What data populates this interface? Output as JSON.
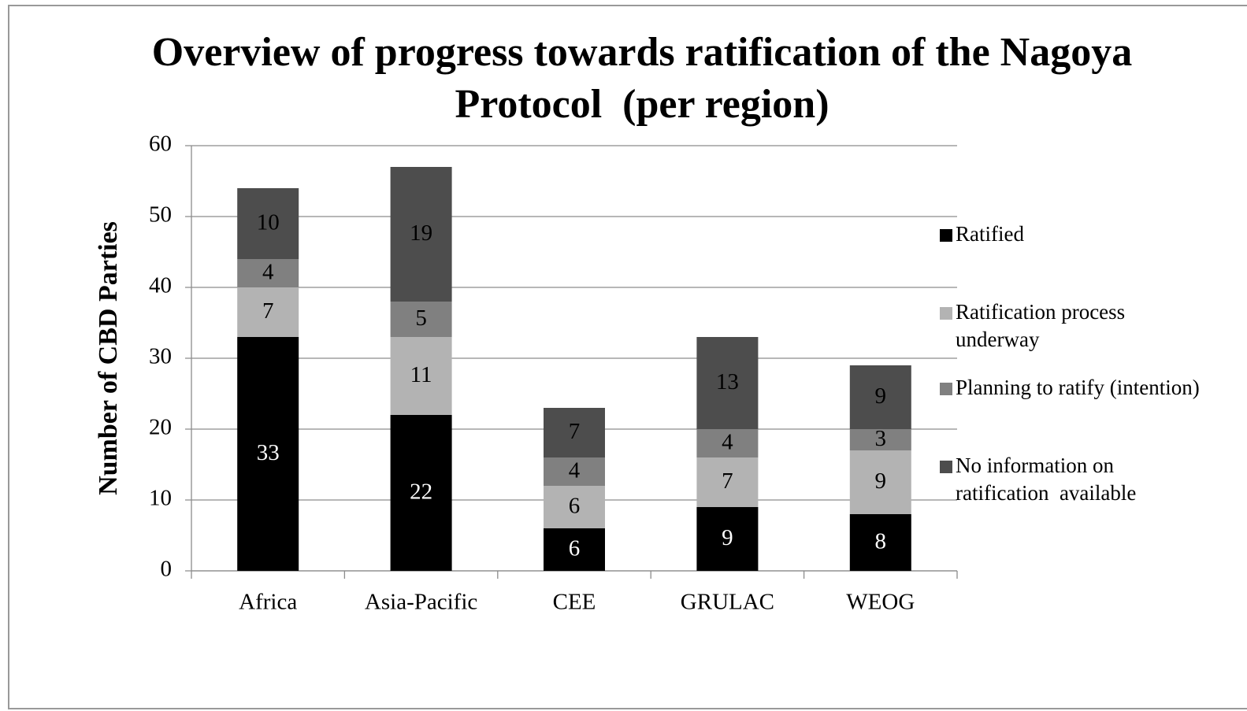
{
  "chart_data": {
    "type": "stacked_bar",
    "title": "Overview of progress towards ratification of the Nagoya Protocol  (per region)",
    "ylabel": "Number of CBD Parties",
    "categories": [
      "Africa",
      "Asia-Pacific",
      "CEE",
      "GRULAC",
      "WEOG"
    ],
    "series": [
      {
        "name": "Ratified",
        "color": "#000000",
        "values": [
          33,
          22,
          6,
          9,
          8
        ]
      },
      {
        "name": "Ratification process underway",
        "color": "#b3b3b3",
        "values": [
          7,
          11,
          6,
          7,
          9
        ]
      },
      {
        "name": "Planning to ratify (intention)",
        "color": "#808080",
        "values": [
          4,
          5,
          4,
          4,
          3
        ]
      },
      {
        "name": "No information on ratification  available",
        "color": "#4d4d4d",
        "values": [
          10,
          19,
          7,
          13,
          9
        ]
      }
    ],
    "ylim": [
      0,
      60
    ],
    "yticks": [
      0,
      10,
      20,
      30,
      40,
      50,
      60
    ],
    "grid": true,
    "legend": "right"
  }
}
